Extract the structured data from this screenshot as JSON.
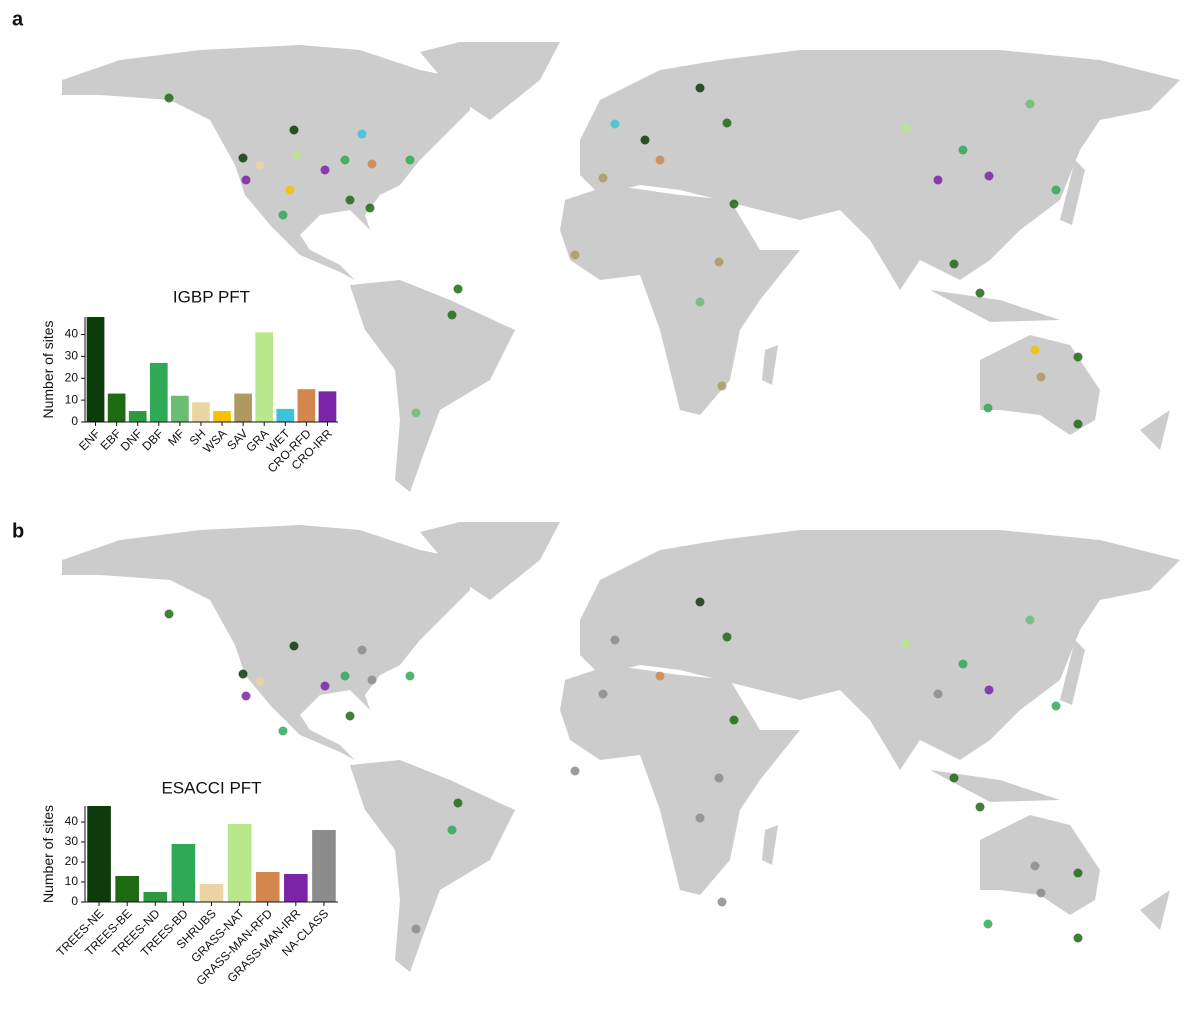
{
  "chart_data": [
    {
      "type": "bar",
      "annotation": "a",
      "title": "IGBP PFT",
      "y_label": "Number of sites",
      "categories": [
        "ENF",
        "EBF",
        "DNF",
        "DBF",
        "MF",
        "SH",
        "WSA",
        "SAV",
        "GRA",
        "WET",
        "CRO-RFD",
        "CRO-IRR"
      ],
      "values": [
        48,
        13,
        5,
        27,
        12,
        9,
        5,
        13,
        41,
        6,
        15,
        14
      ],
      "colors": [
        "#0d3b0c",
        "#1f6b14",
        "#2b9a3f",
        "#2fa956",
        "#6bbd74",
        "#ebd6a3",
        "#f6c102",
        "#ae9a60",
        "#b9e78c",
        "#3cc3d9",
        "#d3874c",
        "#7b24a8"
      ],
      "ylim": [
        0,
        48
      ],
      "yticks": [
        0,
        10,
        20,
        30,
        40
      ]
    },
    {
      "type": "bar",
      "annotation": "b",
      "title": "ESACCI PFT",
      "y_label": "Number of sites",
      "categories": [
        "TREES-NE",
        "TREES-BE",
        "TREES-ND",
        "TREES-BD",
        "SHRUBS",
        "GRASS-NAT",
        "GRASS-MAN-RFD",
        "GRASS-MAN-IRR",
        "NA-CLASS"
      ],
      "values": [
        48,
        13,
        5,
        29,
        9,
        39,
        15,
        14,
        36
      ],
      "colors": [
        "#0d3b0c",
        "#1f6b14",
        "#2b9a3f",
        "#2fa956",
        "#ebd6a3",
        "#b9e78c",
        "#d3874c",
        "#7b24a8",
        "#8c8c8c"
      ],
      "ylim": [
        0,
        48
      ],
      "yticks": [
        0,
        10,
        20,
        30,
        40
      ]
    }
  ]
}
